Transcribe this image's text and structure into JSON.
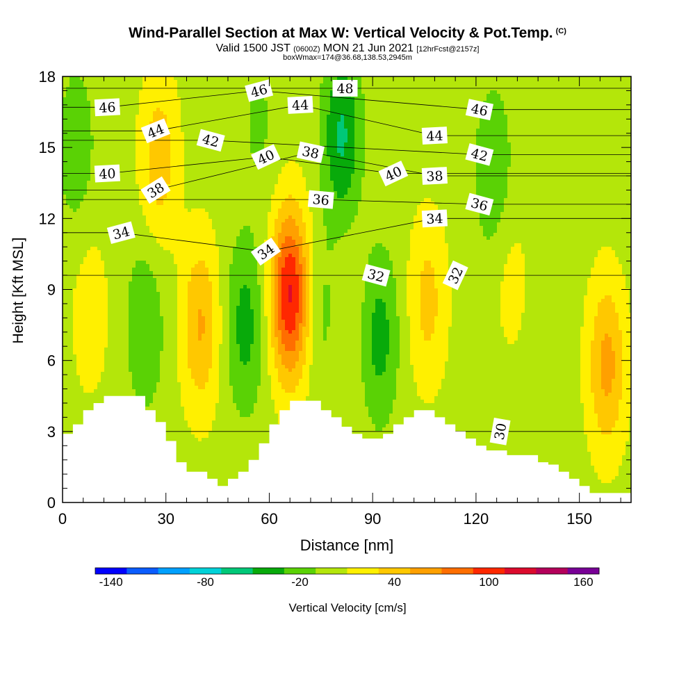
{
  "title": "Wind-Parallel Section at Max W: Vertical Velocity & Pot.Temp.",
  "copyright_mark": "(C)",
  "subtitle": {
    "valid": "Valid 1500 JST",
    "utc": "(0600Z)",
    "date": "MON 21 Jun 2021",
    "forecast": "[12hrFcst@2157z]"
  },
  "box_note": "boxWmax=174@36.68,138.53,2945m",
  "chart_data": {
    "type": "heatmap",
    "xlabel": "Distance [nm]",
    "ylabel": "Height [Kft MSL]",
    "xlim": [
      0,
      165
    ],
    "ylim": [
      0,
      18
    ],
    "x_ticks": [
      0,
      30,
      60,
      90,
      120,
      150
    ],
    "y_ticks": [
      0,
      3,
      6,
      9,
      12,
      15,
      18
    ],
    "colorbar": {
      "label": "Vertical Velocity [cm/s]",
      "tick_labels": [
        "-140",
        "-80",
        "-20",
        "40",
        "100",
        "160"
      ],
      "tick_values": [
        -140,
        -80,
        -20,
        40,
        100,
        160
      ],
      "range": [
        -150,
        170
      ],
      "step": 20,
      "colors": [
        "#0000ff",
        "#0a5cff",
        "#00a0ff",
        "#00d2d8",
        "#00c878",
        "#08aa0a",
        "#5ad205",
        "#b4e60a",
        "#fff000",
        "#ffc800",
        "#ffa000",
        "#ff6e00",
        "#ff2800",
        "#dc0a2d",
        "#b4005a",
        "#780096"
      ]
    },
    "terrain_profile": {
      "x": [
        0,
        3,
        6,
        9,
        12,
        15,
        18,
        21,
        24,
        27,
        30,
        33,
        36,
        39,
        42,
        45,
        48,
        51,
        54,
        57,
        60,
        63,
        66,
        69,
        72,
        75,
        78,
        81,
        84,
        87,
        90,
        93,
        96,
        99,
        102,
        105,
        108,
        111,
        114,
        117,
        120,
        123,
        126,
        129,
        132,
        135,
        138,
        141,
        144,
        147,
        150,
        153,
        156,
        159,
        162,
        165
      ],
      "height_kft": [
        2.9,
        3.3,
        3.9,
        4.2,
        4.5,
        4.5,
        4.5,
        4.5,
        3.9,
        3.4,
        2.6,
        1.7,
        1.3,
        1.3,
        1.0,
        0.7,
        1.0,
        1.3,
        1.8,
        2.5,
        3.3,
        3.9,
        4.3,
        4.3,
        4.3,
        3.9,
        3.6,
        3.2,
        2.9,
        2.7,
        2.7,
        2.9,
        3.3,
        3.6,
        3.9,
        3.9,
        3.6,
        3.3,
        3.0,
        2.7,
        2.4,
        2.2,
        2.2,
        2.0,
        2.0,
        2.0,
        1.7,
        1.6,
        1.3,
        1.0,
        0.7,
        0.4,
        0.4,
        0.4,
        0.4,
        0.4
      ]
    },
    "updrafts_cm_s": [
      {
        "x": 66,
        "height_kft": 8.8,
        "peak": 110
      },
      {
        "x": 40,
        "height_kft": 7.5,
        "peak": 50
      },
      {
        "x": 158,
        "height_kft": 5.8,
        "peak": 55
      },
      {
        "x": 106,
        "height_kft": 8.5,
        "peak": 35
      },
      {
        "x": 8,
        "height_kft": 8.0,
        "peak": 20
      },
      {
        "x": 28,
        "height_kft": 14.5,
        "peak": 40
      },
      {
        "x": 130,
        "height_kft": 9.5,
        "peak": 15
      },
      {
        "x": 82,
        "height_kft": 8.0,
        "peak": 12
      }
    ],
    "downdrafts_cm_s": [
      {
        "x": 81,
        "height_kft": 15.5,
        "peak": -55
      },
      {
        "x": 53,
        "height_kft": 7.5,
        "peak": -40
      },
      {
        "x": 92,
        "height_kft": 7.0,
        "peak": -40
      },
      {
        "x": 24,
        "height_kft": 7.5,
        "peak": -30
      },
      {
        "x": 4,
        "height_kft": 15.0,
        "peak": -25
      },
      {
        "x": 125,
        "height_kft": 14.0,
        "peak": -30
      },
      {
        "x": 76,
        "height_kft": 8.0,
        "peak": -20
      },
      {
        "x": 57,
        "height_kft": 16.0,
        "peak": -15
      }
    ],
    "potential_temperature_contours": {
      "unit": "C",
      "labels": [
        {
          "text": "46",
          "x": 13,
          "height_kft": 16.7,
          "angle": -3
        },
        {
          "text": "44",
          "x": 27,
          "height_kft": 15.7,
          "angle": -22
        },
        {
          "text": "42",
          "x": 43,
          "height_kft": 15.3,
          "angle": 15
        },
        {
          "text": "46",
          "x": 57,
          "height_kft": 17.4,
          "angle": -15
        },
        {
          "text": "44",
          "x": 69,
          "height_kft": 16.8,
          "angle": -3
        },
        {
          "text": "48",
          "x": 82,
          "height_kft": 17.5,
          "angle": 0
        },
        {
          "text": "40",
          "x": 13,
          "height_kft": 13.9,
          "angle": -3
        },
        {
          "text": "38",
          "x": 27,
          "height_kft": 13.2,
          "angle": -32
        },
        {
          "text": "40",
          "x": 59,
          "height_kft": 14.6,
          "angle": -25
        },
        {
          "text": "38",
          "x": 72,
          "height_kft": 14.8,
          "angle": 12
        },
        {
          "text": "36",
          "x": 75,
          "height_kft": 12.8,
          "angle": 5
        },
        {
          "text": "40",
          "x": 96,
          "height_kft": 13.9,
          "angle": -25
        },
        {
          "text": "44",
          "x": 108,
          "height_kft": 15.5,
          "angle": -3
        },
        {
          "text": "38",
          "x": 108,
          "height_kft": 13.8,
          "angle": -3
        },
        {
          "text": "34",
          "x": 108,
          "height_kft": 12.0,
          "angle": -3
        },
        {
          "text": "46",
          "x": 121,
          "height_kft": 16.6,
          "angle": 12
        },
        {
          "text": "42",
          "x": 121,
          "height_kft": 14.7,
          "angle": 15
        },
        {
          "text": "36",
          "x": 121,
          "height_kft": 12.6,
          "angle": 15
        },
        {
          "text": "34",
          "x": 17,
          "height_kft": 11.4,
          "angle": -15
        },
        {
          "text": "34",
          "x": 59,
          "height_kft": 10.6,
          "angle": -35
        },
        {
          "text": "32",
          "x": 91,
          "height_kft": 9.6,
          "angle": 15
        },
        {
          "text": "32",
          "x": 114,
          "height_kft": 9.6,
          "angle": -65
        },
        {
          "text": "30",
          "x": 127,
          "height_kft": 3.0,
          "angle": -80
        }
      ]
    }
  }
}
